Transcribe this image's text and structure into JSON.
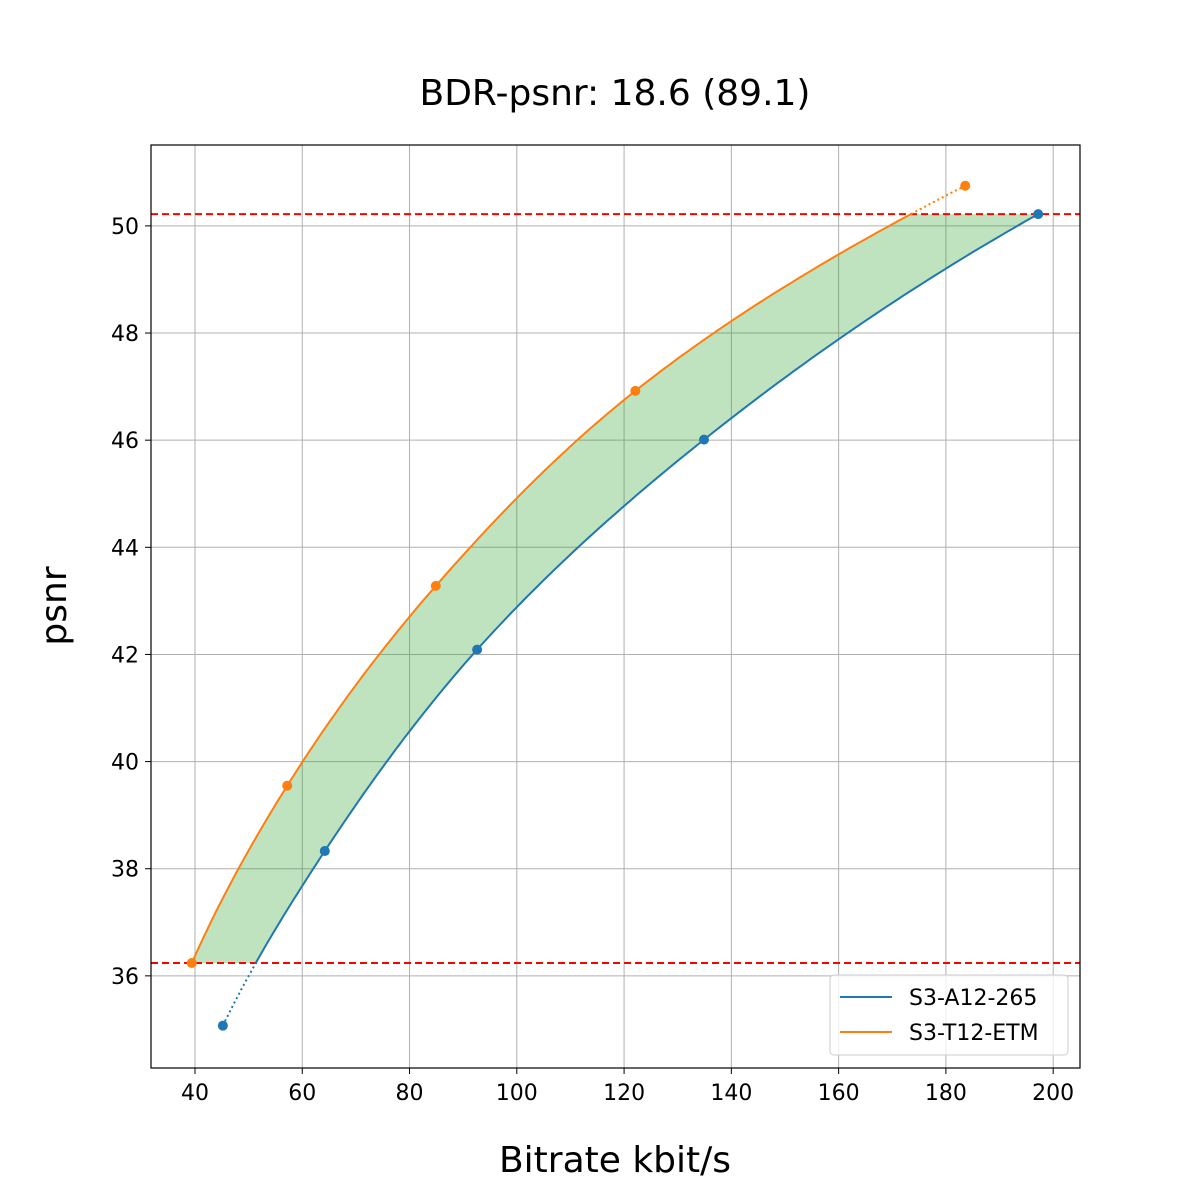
{
  "chart_data": {
    "type": "line",
    "title": "BDR-psnr: 18.6 (89.1)",
    "xlabel": "Bitrate kbit/s",
    "ylabel": "psnr",
    "xlim": [
      31.8,
      205.0
    ],
    "ylim": [
      34.28,
      51.51
    ],
    "xticks": [
      40,
      60,
      80,
      100,
      120,
      140,
      160,
      180,
      200
    ],
    "yticks": [
      36,
      38,
      40,
      42,
      44,
      46,
      48,
      50
    ],
    "grid": true,
    "legend_position": "lower-right",
    "fill_color": "#2ca02c",
    "hlines": [
      {
        "y": 50.22,
        "color": "#ff0000",
        "style": "dashed"
      },
      {
        "y": 36.24,
        "color": "#ff0000",
        "style": "dashed"
      }
    ],
    "series": [
      {
        "name": "S3-A12-265",
        "color": "#1f77b4",
        "x": [
          45.2,
          64.2,
          92.6,
          134.9,
          197.2
        ],
        "y": [
          35.07,
          38.33,
          42.09,
          46.01,
          50.22
        ]
      },
      {
        "name": "S3-T12-ETM",
        "color": "#ff7f0e",
        "x": [
          39.4,
          57.2,
          84.9,
          122.1,
          183.6
        ],
        "y": [
          36.24,
          39.55,
          43.28,
          46.92,
          50.75
        ]
      }
    ]
  }
}
